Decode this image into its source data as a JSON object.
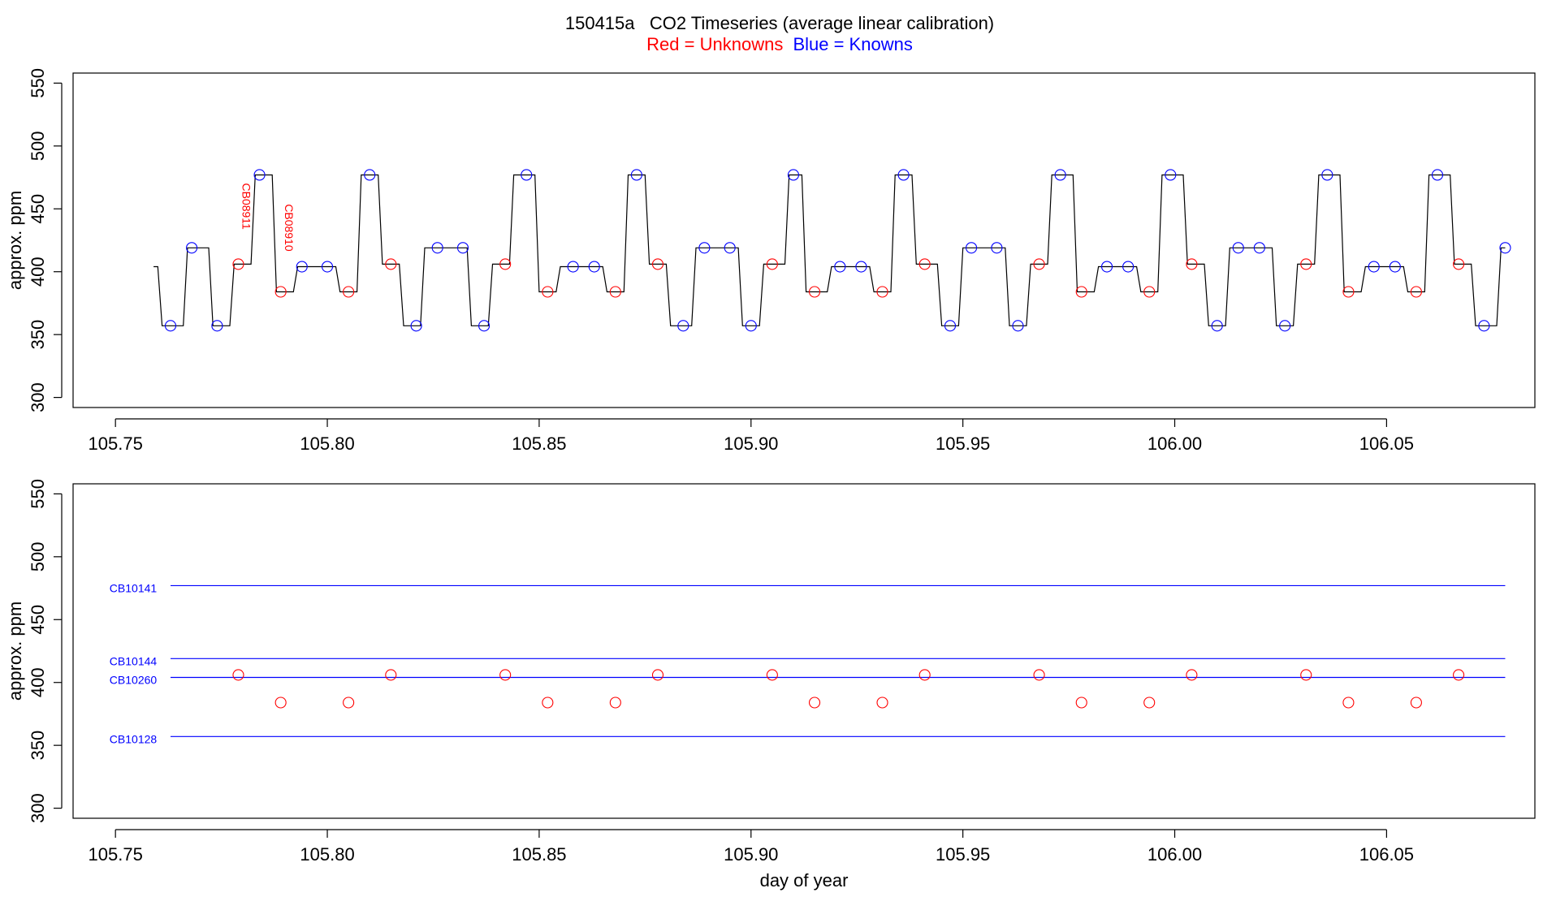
{
  "chart_data": [
    {
      "type": "line",
      "title": "150415a   CO2 Timeseries (average linear calibration)",
      "subtitle_parts": [
        {
          "text": "Red = Unknowns",
          "color": "#ff0000"
        },
        {
          "text": "Blue = Knowns",
          "color": "#0000ff"
        }
      ],
      "xlabel": "",
      "ylabel": "approx. ppm",
      "xlim": [
        105.74,
        106.085
      ],
      "ylim": [
        292,
        558
      ],
      "x_ticks": [
        105.75,
        105.8,
        105.85,
        105.9,
        105.95,
        106.0,
        106.05
      ],
      "x_tick_labels": [
        "105.75",
        "105.80",
        "105.85",
        "105.90",
        "105.95",
        "106.00",
        "106.05"
      ],
      "y_ticks": [
        300,
        350,
        400,
        450,
        500,
        550
      ],
      "y_tick_labels": [
        "300",
        "350",
        "400",
        "450",
        "500",
        "550"
      ],
      "series": [
        {
          "kind": "trace",
          "color": "#000000",
          "x": [
            105.759,
            105.76,
            105.761,
            105.766,
            105.767,
            105.772,
            105.773,
            105.777,
            105.778,
            105.782,
            105.783,
            105.787,
            105.788,
            105.792,
            105.793,
            105.802,
            105.803,
            105.807,
            105.808,
            105.812,
            105.813,
            105.817,
            105.818,
            105.822,
            105.823,
            105.833,
            105.834,
            105.838,
            105.839,
            105.843,
            105.844,
            105.849,
            105.85,
            105.854,
            105.855,
            105.865,
            105.866,
            105.87,
            105.871,
            105.875,
            105.876,
            105.88,
            105.881,
            105.886,
            105.887,
            105.897,
            105.898,
            105.902,
            105.903,
            105.908,
            105.909,
            105.912,
            105.913,
            105.918,
            105.919,
            105.928,
            105.929,
            105.933,
            105.934,
            105.938,
            105.939,
            105.944,
            105.945,
            105.949,
            105.95,
            105.96,
            105.961,
            105.965,
            105.966,
            105.97,
            105.971,
            105.976,
            105.977,
            105.981,
            105.982,
            105.991,
            105.992,
            105.996,
            105.997,
            106.002,
            106.003,
            106.007,
            106.008,
            106.012,
            106.013,
            106.023,
            106.024,
            106.028,
            106.029,
            106.033,
            106.034,
            106.039,
            106.04,
            106.044,
            106.045,
            106.054,
            106.055,
            106.059,
            106.06,
            106.065,
            106.066,
            106.07,
            106.071,
            106.076,
            106.077,
            106.078
          ],
          "y": [
            404,
            404,
            357,
            357,
            419,
            419,
            357,
            357,
            406,
            406,
            477,
            477,
            384,
            384,
            404,
            404,
            384,
            384,
            477,
            477,
            406,
            406,
            357,
            357,
            419,
            419,
            357,
            357,
            406,
            406,
            477,
            477,
            384,
            384,
            404,
            404,
            384,
            384,
            477,
            477,
            406,
            406,
            357,
            357,
            419,
            419,
            357,
            357,
            406,
            406,
            477,
            477,
            384,
            384,
            404,
            404,
            384,
            384,
            477,
            477,
            406,
            406,
            357,
            357,
            419,
            419,
            357,
            357,
            406,
            406,
            477,
            477,
            384,
            384,
            404,
            404,
            384,
            384,
            477,
            477,
            406,
            406,
            357,
            357,
            419,
            419,
            357,
            357,
            406,
            406,
            477,
            477,
            384,
            384,
            404,
            404,
            384,
            384,
            477,
            477,
            406,
            406,
            357,
            357,
            419,
            419
          ]
        },
        {
          "name": "Unknowns",
          "kind": "points",
          "color": "#ff0000",
          "x": [
            105.779,
            105.789,
            105.805,
            105.815,
            105.842,
            105.852,
            105.868,
            105.878,
            105.905,
            105.915,
            105.931,
            105.941,
            105.968,
            105.978,
            105.994,
            106.004,
            106.031,
            106.041,
            106.057,
            106.067
          ],
          "y": [
            406,
            384,
            384,
            406,
            406,
            384,
            384,
            406,
            406,
            384,
            384,
            406,
            406,
            384,
            384,
            406,
            406,
            384,
            384,
            406
          ]
        },
        {
          "name": "Knowns",
          "kind": "points",
          "color": "#0000ff",
          "x": [
            105.763,
            105.768,
            105.774,
            105.784,
            105.794,
            105.8,
            105.81,
            105.821,
            105.826,
            105.832,
            105.837,
            105.847,
            105.858,
            105.863,
            105.873,
            105.884,
            105.889,
            105.895,
            105.9,
            105.91,
            105.921,
            105.926,
            105.936,
            105.947,
            105.952,
            105.958,
            105.963,
            105.973,
            105.984,
            105.989,
            105.999,
            106.01,
            106.015,
            106.02,
            106.026,
            106.036,
            106.047,
            106.052,
            106.062,
            106.073,
            106.078
          ],
          "y": [
            357,
            419,
            357,
            477,
            404,
            404,
            477,
            357,
            419,
            419,
            357,
            477,
            404,
            404,
            477,
            357,
            419,
            419,
            357,
            477,
            404,
            404,
            477,
            357,
            419,
            419,
            357,
            477,
            404,
            404,
            477,
            357,
            419,
            419,
            357,
            477,
            404,
            404,
            477,
            357,
            419
          ]
        }
      ],
      "annotations": [
        {
          "text": "CB08911",
          "x": 105.78,
          "y": 452,
          "color": "#ff0000",
          "rotation": 90
        },
        {
          "text": "CB08910",
          "x": 105.79,
          "y": 435,
          "color": "#ff0000",
          "rotation": 90
        }
      ]
    },
    {
      "type": "scatter",
      "title": "",
      "xlabel": "day of year",
      "ylabel": "approx. ppm",
      "xlim": [
        105.74,
        106.085
      ],
      "ylim": [
        292,
        558
      ],
      "x_ticks": [
        105.75,
        105.8,
        105.85,
        105.9,
        105.95,
        106.0,
        106.05
      ],
      "x_tick_labels": [
        "105.75",
        "105.80",
        "105.85",
        "105.90",
        "105.95",
        "106.00",
        "106.05"
      ],
      "y_ticks": [
        300,
        350,
        400,
        450,
        500,
        550
      ],
      "y_tick_labels": [
        "300",
        "350",
        "400",
        "450",
        "500",
        "550"
      ],
      "reference_lines": [
        {
          "label": "CB10141",
          "y": 477,
          "x_start": 105.763,
          "x_end": 106.078,
          "color": "#0000ff"
        },
        {
          "label": "CB10144",
          "y": 419,
          "x_start": 105.763,
          "x_end": 106.078,
          "color": "#0000ff"
        },
        {
          "label": "CB10260",
          "y": 404,
          "x_start": 105.763,
          "x_end": 106.078,
          "color": "#0000ff"
        },
        {
          "label": "CB10128",
          "y": 357,
          "x_start": 105.763,
          "x_end": 106.078,
          "color": "#0000ff"
        }
      ],
      "series": [
        {
          "name": "Unknowns",
          "kind": "points",
          "color": "#ff0000",
          "x": [
            105.779,
            105.789,
            105.805,
            105.815,
            105.842,
            105.852,
            105.868,
            105.878,
            105.905,
            105.915,
            105.931,
            105.941,
            105.968,
            105.978,
            105.994,
            106.004,
            106.031,
            106.041,
            106.057,
            106.067
          ],
          "y": [
            406,
            384,
            384,
            406,
            406,
            384,
            384,
            406,
            406,
            384,
            384,
            406,
            406,
            384,
            384,
            406,
            406,
            384,
            384,
            406
          ]
        }
      ]
    }
  ]
}
